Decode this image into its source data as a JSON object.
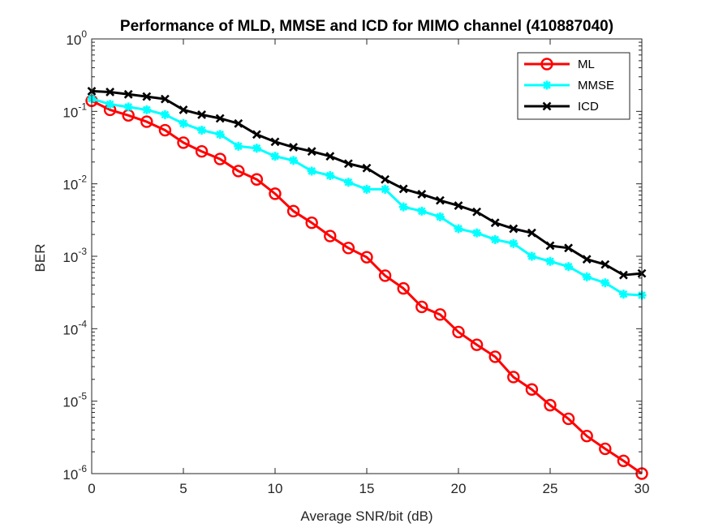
{
  "chart_data": {
    "type": "line",
    "title": "Performance of MLD, MMSE and ICD for MIMO channel (410887040)",
    "xlabel": "Average SNR/bit (dB)",
    "ylabel": "BER",
    "xlim": [
      0,
      30
    ],
    "ylim": [
      1e-06,
      1
    ],
    "yscale": "log",
    "xticks": [
      "0",
      "5",
      "10",
      "15",
      "20",
      "25",
      "30"
    ],
    "yticks": [
      {
        "base": "10",
        "exp": "0"
      },
      {
        "base": "10",
        "exp": "-1"
      },
      {
        "base": "10",
        "exp": "-2"
      },
      {
        "base": "10",
        "exp": "-3"
      },
      {
        "base": "10",
        "exp": "-4"
      },
      {
        "base": "10",
        "exp": "-5"
      },
      {
        "base": "10",
        "exp": "-6"
      }
    ],
    "grid": false,
    "legend_position": "top-right",
    "x": [
      0,
      1,
      2,
      3,
      4,
      5,
      6,
      7,
      8,
      9,
      10,
      11,
      12,
      13,
      14,
      15,
      16,
      17,
      18,
      19,
      20,
      21,
      22,
      23,
      24,
      25,
      26,
      27,
      28,
      29,
      30
    ],
    "series": [
      {
        "name": "ML",
        "color": "#ff0000",
        "marker": "circle",
        "values": [
          0.14,
          0.105,
          0.088,
          0.072,
          0.055,
          0.037,
          0.028,
          0.022,
          0.015,
          0.0115,
          0.0073,
          0.0042,
          0.0029,
          0.0019,
          0.0013,
          0.00097,
          0.00054,
          0.00036,
          0.0002,
          0.000157,
          9e-05,
          6e-05,
          4.1e-05,
          2.15e-05,
          1.45e-05,
          8.8e-06,
          5.7e-06,
          3.3e-06,
          2.2e-06,
          1.5e-06,
          1e-06
        ]
      },
      {
        "name": "MMSE",
        "color": "#00ffff",
        "marker": "star",
        "values": [
          0.15,
          0.125,
          0.115,
          0.105,
          0.09,
          0.068,
          0.055,
          0.048,
          0.033,
          0.031,
          0.024,
          0.021,
          0.015,
          0.013,
          0.0105,
          0.0084,
          0.0084,
          0.0048,
          0.0042,
          0.0035,
          0.0024,
          0.0021,
          0.0017,
          0.0015,
          0.001,
          0.00085,
          0.00072,
          0.00052,
          0.00043,
          0.0003,
          0.00029
        ]
      },
      {
        "name": "ICD",
        "color": "#000000",
        "marker": "x",
        "values": [
          0.19,
          0.185,
          0.172,
          0.16,
          0.148,
          0.105,
          0.09,
          0.08,
          0.068,
          0.048,
          0.038,
          0.032,
          0.028,
          0.024,
          0.019,
          0.0165,
          0.0115,
          0.0085,
          0.0072,
          0.0059,
          0.005,
          0.0041,
          0.0029,
          0.0024,
          0.0021,
          0.0014,
          0.0013,
          0.00091,
          0.00077,
          0.00055,
          0.00058
        ]
      }
    ]
  }
}
